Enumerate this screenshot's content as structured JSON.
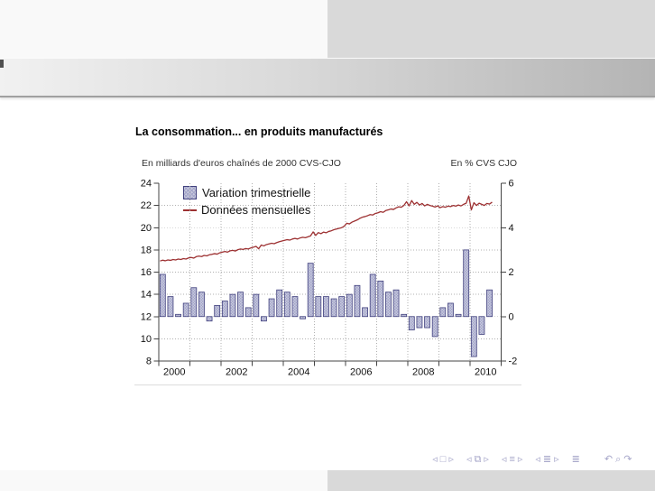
{
  "slide": {
    "title": "La consommation... en produits manufacturés"
  },
  "chart": {
    "header_left": "En milliards d'euros chaînés de 2000 CVS-CJO",
    "header_right": "En % CVS CJO",
    "legend": [
      {
        "type": "bar",
        "label": "Variation trimestrielle"
      },
      {
        "type": "line",
        "label": "Données mensuelles"
      }
    ]
  },
  "chart_data": {
    "type": "bar+line",
    "title": "La consommation... en produits manufacturés",
    "left_axis": {
      "label": "En milliards d'euros chaînés de 2000 CVS-CJO",
      "range": [
        8,
        24
      ],
      "ticks": [
        8,
        10,
        12,
        14,
        16,
        18,
        20,
        22,
        24
      ]
    },
    "right_axis": {
      "label": "En % CVS CJO",
      "range": [
        -2,
        6
      ],
      "ticks": [
        -2,
        0,
        2,
        4,
        6
      ]
    },
    "x_axis": {
      "range_years": [
        2000,
        2011
      ],
      "tick_years": [
        2000,
        2001,
        2002,
        2003,
        2004,
        2005,
        2006,
        2007,
        2008,
        2009,
        2010,
        2011
      ],
      "label_years": [
        2000,
        2002,
        2004,
        2006,
        2008,
        2010
      ],
      "grid": "dotted"
    },
    "bars": {
      "name": "Variation trimestrielle",
      "axis": "right",
      "unit": "%",
      "baseline": 0,
      "quarters": [
        "2000T1",
        "2000T2",
        "2000T3",
        "2000T4",
        "2001T1",
        "2001T2",
        "2001T3",
        "2001T4",
        "2002T1",
        "2002T2",
        "2002T3",
        "2002T4",
        "2003T1",
        "2003T2",
        "2003T3",
        "2003T4",
        "2004T1",
        "2004T2",
        "2004T3",
        "2004T4",
        "2005T1",
        "2005T2",
        "2005T3",
        "2005T4",
        "2006T1",
        "2006T2",
        "2006T3",
        "2006T4",
        "2007T1",
        "2007T2",
        "2007T3",
        "2007T4",
        "2008T1",
        "2008T2",
        "2008T3",
        "2008T4",
        "2009T1",
        "2009T2",
        "2009T3",
        "2009T4",
        "2010T1",
        "2010T2",
        "2010T3"
      ],
      "values": [
        1.9,
        0.9,
        0.1,
        0.6,
        1.3,
        1.1,
        -0.2,
        0.5,
        0.7,
        1.0,
        1.1,
        0.4,
        1.0,
        -0.2,
        0.8,
        1.2,
        1.1,
        0.9,
        -0.1,
        2.4,
        0.9,
        0.9,
        0.8,
        0.9,
        1.0,
        1.4,
        0.4,
        1.9,
        1.6,
        1.1,
        1.2,
        0.1,
        -0.6,
        -0.5,
        -0.5,
        -0.9,
        0.4,
        0.6,
        0.1,
        3.0,
        -1.8,
        -0.8,
        1.2
      ]
    },
    "line": {
      "name": "Données mensuelles",
      "axis": "left",
      "unit": "milliards d'euros",
      "start_month": "2000-01",
      "values": [
        17.0,
        17.08,
        17.02,
        17.1,
        17.06,
        17.14,
        17.1,
        17.18,
        17.14,
        17.22,
        17.18,
        17.28,
        17.32,
        17.26,
        17.4,
        17.44,
        17.4,
        17.5,
        17.46,
        17.56,
        17.6,
        17.66,
        17.62,
        17.74,
        17.8,
        17.86,
        17.8,
        17.92,
        17.96,
        17.9,
        18.02,
        18.08,
        18.04,
        18.12,
        18.08,
        18.18,
        18.24,
        18.32,
        18.1,
        18.44,
        18.36,
        18.48,
        18.54,
        18.6,
        18.56,
        18.66,
        18.74,
        18.8,
        18.86,
        18.92,
        18.88,
        18.98,
        19.04,
        18.98,
        19.08,
        19.14,
        19.1,
        19.18,
        19.26,
        19.62,
        19.3,
        19.56,
        19.46,
        19.6,
        19.54,
        19.66,
        19.72,
        19.82,
        19.88,
        19.94,
        20.0,
        20.14,
        20.4,
        20.34,
        20.5,
        20.6,
        20.7,
        20.84,
        20.94,
        21.0,
        21.08,
        21.18,
        21.14,
        21.28,
        21.34,
        21.44,
        21.38,
        21.54,
        21.6,
        21.68,
        21.64,
        21.78,
        21.88,
        21.84,
        22.0,
        22.34,
        21.96,
        22.44,
        22.1,
        22.28,
        22.04,
        22.18,
        21.96,
        22.1,
        22.0,
        21.94,
        21.86,
        21.96,
        21.8,
        21.9,
        21.84,
        21.94,
        21.9,
        22.0,
        21.94,
        22.04,
        21.96,
        22.1,
        22.2,
        22.85,
        21.6,
        22.25,
        22.0,
        22.2,
        22.1,
        22.0,
        22.18,
        22.12,
        22.3
      ]
    }
  },
  "nav": {
    "groups": [
      {
        "name": "slide-nav",
        "symbols": [
          "◃",
          "□",
          "▹"
        ]
      },
      {
        "name": "frame-nav",
        "symbols": [
          "◃",
          "⧉",
          "▹"
        ]
      },
      {
        "name": "subsection-nav",
        "symbols": [
          "◃",
          "≡",
          "▹"
        ]
      },
      {
        "name": "section-nav",
        "symbols": [
          "◃",
          "≣",
          "▹"
        ]
      },
      {
        "name": "appendix-nav",
        "symbols": [
          "≣"
        ]
      },
      {
        "name": "tools-nav",
        "symbols": [
          "↶",
          "⌕",
          "↷"
        ]
      }
    ]
  },
  "colors": {
    "bar_fill": "#c9cade",
    "bar_hatch": "#a3a5c9",
    "bar_stroke": "#41417e",
    "line": "#9d3132",
    "grid": "#b0b0b0",
    "axis": "#444444",
    "nav": "#a6a6c9",
    "band_dark": "#b4b4b4",
    "block_gray": "#d9d9d9"
  }
}
